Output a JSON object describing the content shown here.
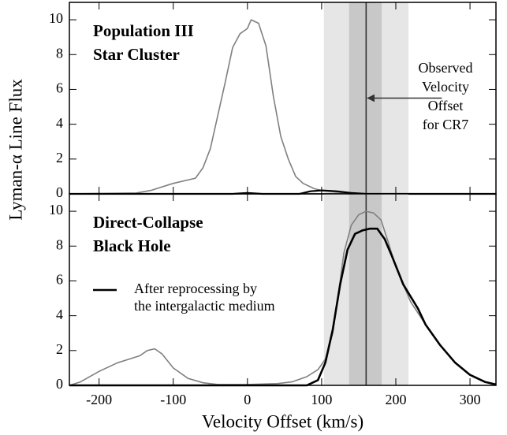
{
  "chart_data": [
    {
      "type": "line",
      "title_lines": [
        "Population III",
        "Star Cluster"
      ],
      "ylabel": "Lyman-α Line Flux",
      "xlim": [
        -240,
        335
      ],
      "ylim": [
        0,
        11
      ],
      "xticks": [
        -200,
        -100,
        0,
        100,
        200,
        300
      ],
      "yticks": [
        0,
        2,
        4,
        6,
        8,
        10
      ],
      "show_xticklabels": false,
      "bands": [
        {
          "range": [
            103,
            217
          ],
          "color": "#e6e6e6"
        },
        {
          "range": [
            137,
            181
          ],
          "color": "#c8c8c8"
        }
      ],
      "vline": 160,
      "annotation": {
        "lines": [
          "Observed",
          "Velocity",
          "Offset",
          "for CR7"
        ],
        "arrow_from": [
          262,
          5.5
        ],
        "arrow_to": [
          162,
          5.5
        ]
      },
      "series": [
        {
          "color": "#808080",
          "width": 1.6,
          "x": [
            -240,
            -150,
            -130,
            -100,
            -70,
            -60,
            -50,
            -40,
            -30,
            -20,
            -10,
            0,
            5,
            15,
            25,
            35,
            45,
            55,
            65,
            75,
            90,
            100,
            120,
            140,
            160,
            335
          ],
          "values": [
            0,
            0.05,
            0.2,
            0.6,
            0.9,
            1.5,
            2.6,
            4.5,
            6.4,
            8.4,
            9.2,
            9.5,
            10,
            9.8,
            8.5,
            5.6,
            3.3,
            2.0,
            1.0,
            0.6,
            0.3,
            0.2,
            0.1,
            0.05,
            0,
            0
          ]
        },
        {
          "color": "#000000",
          "width": 2.2,
          "x": [
            -240,
            -20,
            0,
            20,
            70,
            85,
            100,
            120,
            140,
            160,
            335
          ],
          "values": [
            0,
            0,
            0.05,
            0,
            0,
            0.15,
            0.2,
            0.15,
            0.05,
            0,
            0
          ]
        }
      ]
    },
    {
      "type": "line",
      "title_lines": [
        "Direct-Collapse",
        "Black Hole"
      ],
      "xlabel": "Velocity Offset (km/s)",
      "xlim": [
        -240,
        335
      ],
      "ylim": [
        0,
        11
      ],
      "xticks": [
        -200,
        -100,
        0,
        100,
        200,
        300
      ],
      "yticks": [
        0,
        2,
        4,
        6,
        8,
        10
      ],
      "show_xticklabels": true,
      "bands": [
        {
          "range": [
            103,
            217
          ],
          "color": "#e6e6e6"
        },
        {
          "range": [
            137,
            181
          ],
          "color": "#c8c8c8"
        }
      ],
      "vline": 160,
      "series": [
        {
          "color": "#808080",
          "width": 1.6,
          "x": [
            -240,
            -225,
            -200,
            -175,
            -160,
            -145,
            -135,
            -125,
            -115,
            -100,
            -80,
            -60,
            -40,
            0,
            40,
            60,
            80,
            95,
            105,
            115,
            125,
            130,
            140,
            150,
            160,
            170,
            180,
            190,
            200,
            220,
            240,
            260,
            280,
            300,
            320,
            335
          ],
          "values": [
            0,
            0.2,
            0.8,
            1.3,
            1.5,
            1.7,
            2.0,
            2.1,
            1.8,
            1.0,
            0.4,
            0.15,
            0.05,
            0.05,
            0.1,
            0.2,
            0.5,
            0.9,
            1.5,
            3.0,
            6.0,
            7.6,
            9.2,
            9.8,
            10,
            9.9,
            9.5,
            8.2,
            6.8,
            4.8,
            3.5,
            2.3,
            1.3,
            0.6,
            0.2,
            0.05
          ]
        },
        {
          "name": [
            "After reprocessing by",
            "the intergalactic medium"
          ],
          "color": "#000000",
          "width": 2.6,
          "x": [
            -240,
            80,
            95,
            105,
            115,
            125,
            135,
            145,
            155,
            165,
            175,
            185,
            195,
            210,
            230,
            240,
            260,
            280,
            300,
            320,
            335
          ],
          "values": [
            0,
            0,
            0.3,
            1.3,
            3.2,
            5.8,
            7.8,
            8.7,
            8.9,
            9.0,
            9.0,
            8.4,
            7.4,
            5.8,
            4.4,
            3.5,
            2.3,
            1.3,
            0.6,
            0.2,
            0.05
          ]
        }
      ]
    }
  ]
}
